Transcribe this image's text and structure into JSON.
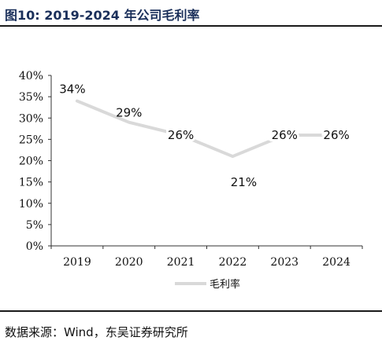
{
  "figure": {
    "title": "图10:  2019-2024 年公司毛利率",
    "source": "数据来源：Wind，东吴证券研究所"
  },
  "colors": {
    "series": "#d9d9d9",
    "axis": "#333333",
    "text": "#111111",
    "title": "#1a2f5a"
  },
  "chart_data": {
    "type": "line",
    "title": "",
    "xlabel": "",
    "ylabel": "",
    "x": [
      "2019",
      "2020",
      "2021",
      "2022",
      "2023",
      "2024"
    ],
    "series": [
      {
        "name": "毛利率",
        "values": [
          34,
          29,
          26,
          21,
          26,
          26
        ],
        "labels": [
          "34%",
          "29%",
          "26%",
          "21%",
          "26%",
          "26%"
        ]
      }
    ],
    "ylim": [
      0,
      40
    ],
    "yticks": [
      "0%",
      "5%",
      "10%",
      "15%",
      "20%",
      "25%",
      "30%",
      "35%",
      "40%"
    ],
    "grid": false,
    "legend": "bottom"
  }
}
